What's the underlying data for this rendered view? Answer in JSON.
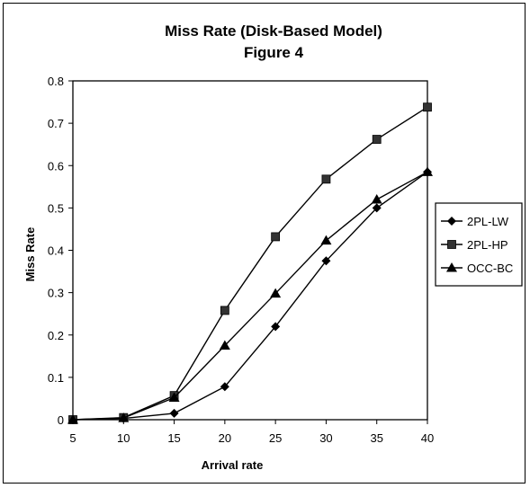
{
  "chart_data": {
    "type": "line",
    "title": "Miss Rate (Disk-Based Model)",
    "subtitle": "Figure 4",
    "xlabel": "Arrival rate",
    "ylabel": "Miss Rate",
    "x": [
      5,
      10,
      15,
      20,
      25,
      30,
      35,
      40
    ],
    "xlim": [
      5,
      40
    ],
    "ylim": [
      0,
      0.8
    ],
    "y_ticks": [
      "0",
      "0.1",
      "0.2",
      "0.3",
      "0.4",
      "0.5",
      "0.6",
      "0.7",
      "0.8"
    ],
    "x_ticks": [
      "5",
      "10",
      "15",
      "20",
      "25",
      "30",
      "35",
      "40"
    ],
    "grid": false,
    "legend_position": "right",
    "series": [
      {
        "name": "2PL-LW",
        "marker": "diamond",
        "values": [
          0.0,
          0.003,
          0.015,
          0.078,
          0.22,
          0.375,
          0.5,
          0.585
        ]
      },
      {
        "name": "2PL-HP",
        "marker": "square",
        "values": [
          0.0,
          0.005,
          0.057,
          0.258,
          0.432,
          0.568,
          0.662,
          0.738
        ]
      },
      {
        "name": "OCC-BC",
        "marker": "triangle",
        "values": [
          0.0,
          0.004,
          0.052,
          0.175,
          0.298,
          0.423,
          0.52,
          0.585
        ]
      }
    ]
  }
}
